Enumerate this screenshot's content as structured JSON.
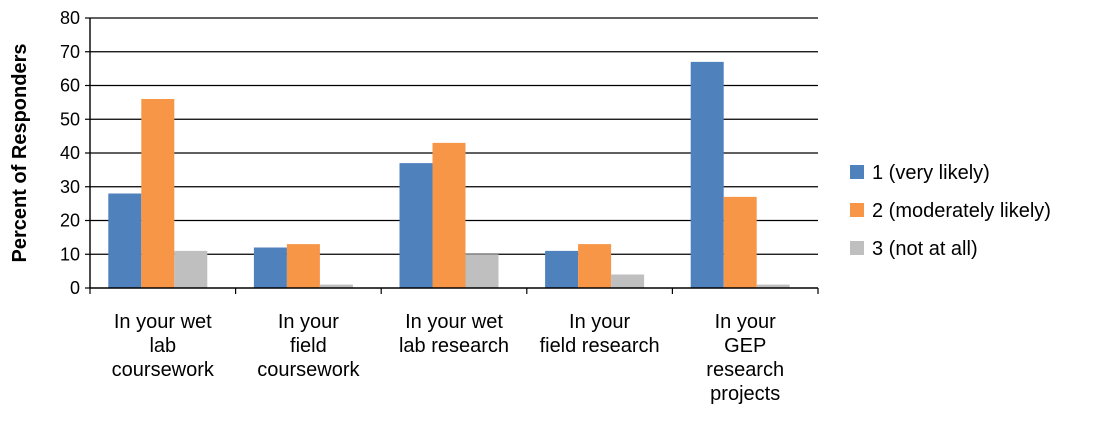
{
  "chart_data": {
    "type": "bar",
    "ylabel": "Percent of Responders",
    "xlabel": "",
    "ylim": [
      0,
      80
    ],
    "yticks": [
      0,
      10,
      20,
      30,
      40,
      50,
      60,
      70,
      80
    ],
    "grid": true,
    "legend_position": "right",
    "categories": [
      [
        "In your wet",
        "lab",
        "coursework"
      ],
      [
        "In your",
        "field",
        "coursework"
      ],
      [
        "In your wet",
        "lab research"
      ],
      [
        "In your",
        "field research"
      ],
      [
        "In your",
        "GEP",
        "research",
        "projects"
      ]
    ],
    "series": [
      {
        "name": "1 (very likely)",
        "color": "#4F81BD",
        "values": [
          28,
          12,
          37,
          11,
          67
        ]
      },
      {
        "name": "2 (moderately likely)",
        "color": "#F79646",
        "values": [
          56,
          13,
          43,
          13,
          27
        ]
      },
      {
        "name": "3 (not at all)",
        "color": "#BFBFBF",
        "values": [
          11,
          1,
          10,
          4,
          1
        ]
      }
    ]
  }
}
